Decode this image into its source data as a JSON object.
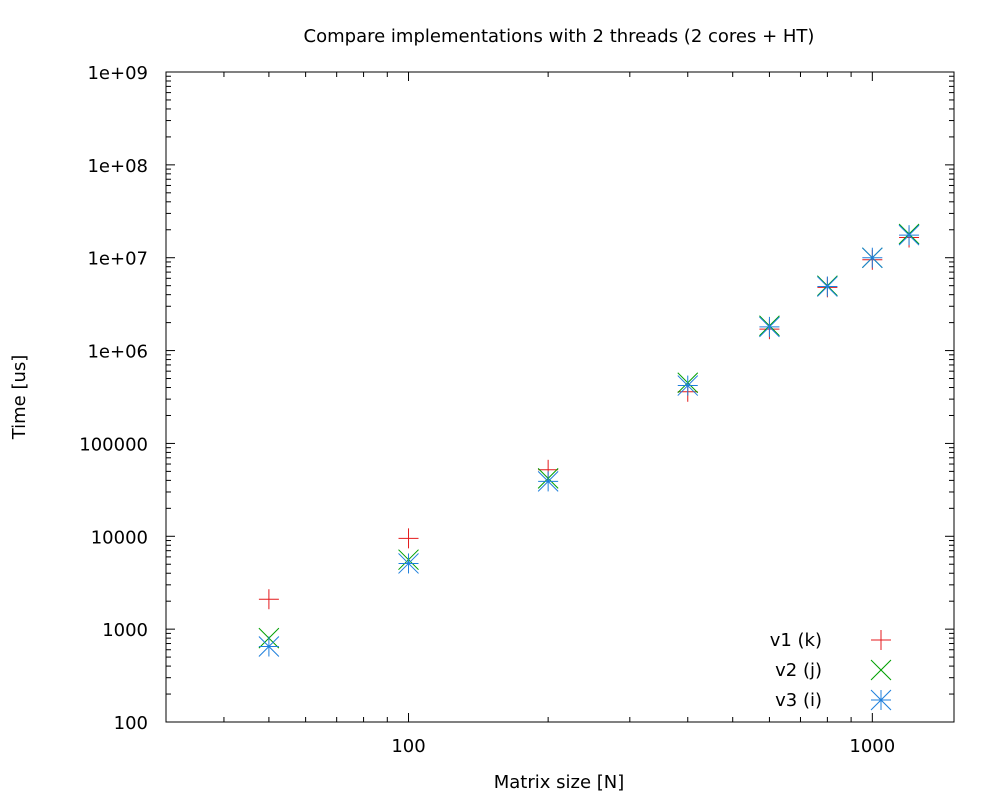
{
  "chart_data": {
    "type": "scatter",
    "title": "Compare implementations with 2 threads (2 cores + HT)",
    "xlabel": "Matrix size [N]",
    "ylabel": "Time [us]",
    "x_scale": "log",
    "y_scale": "log",
    "xlim": [
      30,
      1500
    ],
    "ylim": [
      100,
      1000000000
    ],
    "x_ticks": [
      {
        "value": 100,
        "label": "100"
      },
      {
        "value": 1000,
        "label": "1000"
      }
    ],
    "y_ticks": [
      {
        "value": 100,
        "label": "100"
      },
      {
        "value": 1000,
        "label": "1000"
      },
      {
        "value": 10000,
        "label": "10000"
      },
      {
        "value": 100000,
        "label": "100000"
      },
      {
        "value": 1000000,
        "label": "1e+06"
      },
      {
        "value": 10000000,
        "label": "1e+07"
      },
      {
        "value": 100000000,
        "label": "1e+08"
      },
      {
        "value": 1000000000,
        "label": "1e+09"
      }
    ],
    "grid": false,
    "legend_position": "bottom-right",
    "series": [
      {
        "name": "v1 (k)",
        "marker": "plus",
        "color": "#e41a1c",
        "x": [
          50,
          100,
          200,
          400,
          600,
          800,
          1000,
          1200
        ],
        "y": [
          2100,
          9500,
          52000,
          360000,
          1700000,
          4800000,
          9500000,
          16500000
        ]
      },
      {
        "name": "v2 (j)",
        "marker": "cross",
        "color": "#00a000",
        "x": [
          50,
          100,
          200,
          400,
          600,
          800,
          1000,
          1200
        ],
        "y": [
          800,
          5600,
          42000,
          450000,
          1850000,
          5000000,
          10000000,
          18000000
        ]
      },
      {
        "name": "v3 (i)",
        "marker": "star",
        "color": "#1e7fdc",
        "x": [
          50,
          100,
          200,
          400,
          600,
          800,
          1000,
          1200
        ],
        "y": [
          650,
          5100,
          39000,
          420000,
          1800000,
          4900000,
          10000000,
          17500000
        ]
      }
    ]
  }
}
